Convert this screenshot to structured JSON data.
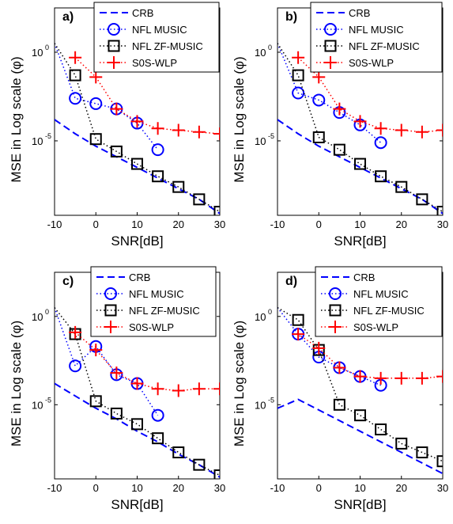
{
  "chart_data": [
    {
      "type": "line",
      "panel_label": "a)",
      "xlabel": "SNR[dB]",
      "ylabel": "MSE in Log scale (φ)",
      "xlim": [
        -10,
        30
      ],
      "ylim_log10": [
        -9.2,
        2.5
      ],
      "y_scale": "log",
      "xticks": [
        "-10",
        "0",
        "10",
        "20",
        "30"
      ],
      "yticks": [
        {
          "base": "10",
          "exp": "0",
          "log": 0
        },
        {
          "base": "10",
          "exp": "-5",
          "log": -5
        }
      ],
      "grid": false,
      "legend_position": "top",
      "series": [
        {
          "name": "CRB",
          "color": "#0000ff",
          "style": "dashed",
          "marker": "none",
          "x": [
            -10,
            -5,
            0,
            5,
            10,
            15,
            20,
            25,
            30
          ],
          "log10_y": [
            -3.8,
            -4.6,
            -5.3,
            -5.9,
            -6.5,
            -7.1,
            -7.7,
            -8.3,
            -9.1
          ]
        },
        {
          "name": "NFL MUSIC",
          "color": "#0000ff",
          "style": "dotted",
          "marker": "circle",
          "x": [
            -10,
            -5,
            0,
            5,
            10,
            15
          ],
          "log10_y": [
            0.5,
            -2.6,
            -2.9,
            -3.2,
            -4.0,
            -5.5
          ]
        },
        {
          "name": "NFL ZF-MUSIC",
          "color": "#000000",
          "style": "dotted",
          "marker": "square",
          "x": [
            -10,
            -5,
            0,
            5,
            10,
            15,
            20,
            25,
            30
          ],
          "log10_y": [
            0.5,
            -1.3,
            -4.9,
            -5.6,
            -6.3,
            -7.0,
            -7.6,
            -8.3,
            -9.0
          ]
        },
        {
          "name": "S0S-WLP",
          "color": "#ff0000",
          "style": "dotted",
          "marker": "plus",
          "x": [
            -5,
            0,
            5,
            10,
            15,
            20,
            25,
            30
          ],
          "log10_y": [
            -0.3,
            -1.4,
            -3.2,
            -3.9,
            -4.3,
            -4.4,
            -4.5,
            -4.6
          ]
        }
      ]
    },
    {
      "type": "line",
      "panel_label": "b)",
      "xlabel": "SNR[dB]",
      "ylabel": "MSE in Log scale (φ)",
      "xlim": [
        -10,
        30
      ],
      "ylim_log10": [
        -9.2,
        2.5
      ],
      "y_scale": "log",
      "xticks": [
        "-10",
        "0",
        "10",
        "20",
        "30"
      ],
      "yticks": [
        {
          "base": "10",
          "exp": "0",
          "log": 0
        },
        {
          "base": "10",
          "exp": "-5",
          "log": -5
        }
      ],
      "grid": false,
      "legend_position": "top",
      "series": [
        {
          "name": "CRB",
          "color": "#0000ff",
          "style": "dashed",
          "marker": "none",
          "x": [
            -10,
            -5,
            0,
            5,
            10,
            15,
            20,
            25,
            30
          ],
          "log10_y": [
            -3.8,
            -4.6,
            -5.3,
            -5.9,
            -6.5,
            -7.1,
            -7.7,
            -8.3,
            -9.1
          ]
        },
        {
          "name": "NFL MUSIC",
          "color": "#0000ff",
          "style": "dotted",
          "marker": "circle",
          "x": [
            -10,
            -5,
            0,
            5,
            10,
            15
          ],
          "log10_y": [
            0.5,
            -2.3,
            -2.7,
            -3.4,
            -4.1,
            -5.1
          ]
        },
        {
          "name": "NFL ZF-MUSIC",
          "color": "#000000",
          "style": "dotted",
          "marker": "square",
          "x": [
            -10,
            -5,
            0,
            5,
            10,
            15,
            20,
            25,
            30
          ],
          "log10_y": [
            0.5,
            -1.3,
            -4.8,
            -5.5,
            -6.3,
            -7.0,
            -7.6,
            -8.3,
            -9.0
          ]
        },
        {
          "name": "S0S-WLP",
          "color": "#ff0000",
          "style": "dotted",
          "marker": "plus",
          "x": [
            -5,
            0,
            5,
            10,
            15,
            20,
            25,
            30
          ],
          "log10_y": [
            -0.3,
            -1.4,
            -3.2,
            -3.9,
            -4.3,
            -4.4,
            -4.5,
            -4.4
          ]
        }
      ]
    },
    {
      "type": "line",
      "panel_label": "c)",
      "xlabel": "SNR[dB]",
      "ylabel": "MSE in Log scale (φ)",
      "xlim": [
        -10,
        30
      ],
      "ylim_log10": [
        -9.2,
        2.5
      ],
      "y_scale": "log",
      "xticks": [
        "-10",
        "0",
        "10",
        "20",
        "30"
      ],
      "yticks": [
        {
          "base": "10",
          "exp": "0",
          "log": 0
        },
        {
          "base": "10",
          "exp": "-5",
          "log": -5
        }
      ],
      "grid": false,
      "legend_position": "top",
      "series": [
        {
          "name": "CRB",
          "color": "#0000ff",
          "style": "dashed",
          "marker": "none",
          "x": [
            -10,
            -5,
            0,
            5,
            10,
            15,
            20,
            25,
            30
          ],
          "log10_y": [
            -3.8,
            -4.5,
            -5.2,
            -5.8,
            -6.5,
            -7.1,
            -7.8,
            -8.4,
            -9.1
          ]
        },
        {
          "name": "NFL MUSIC",
          "color": "#0000ff",
          "style": "dotted",
          "marker": "circle",
          "x": [
            -10,
            -5,
            0,
            5,
            10,
            15
          ],
          "log10_y": [
            0.5,
            -2.8,
            -1.7,
            -3.3,
            -3.8,
            -5.6
          ]
        },
        {
          "name": "NFL ZF-MUSIC",
          "color": "#000000",
          "style": "dotted",
          "marker": "square",
          "x": [
            -10,
            -5,
            0,
            5,
            10,
            15,
            20,
            25,
            30
          ],
          "log10_y": [
            0.5,
            -1.0,
            -4.8,
            -5.5,
            -6.1,
            -6.9,
            -7.7,
            -8.4,
            -9.0
          ]
        },
        {
          "name": "S0S-WLP",
          "color": "#ff0000",
          "style": "dotted",
          "marker": "plus",
          "x": [
            -5,
            0,
            5,
            10,
            15,
            20,
            25,
            30
          ],
          "log10_y": [
            -0.9,
            -1.9,
            -3.2,
            -3.8,
            -4.1,
            -4.2,
            -4.1,
            -4.1
          ]
        }
      ]
    },
    {
      "type": "line",
      "panel_label": "d)",
      "xlabel": "SNR[dB]",
      "ylabel": "MSE in Log scale (φ)",
      "xlim": [
        -10,
        30
      ],
      "ylim_log10": [
        -9.2,
        2.5
      ],
      "y_scale": "log",
      "xticks": [
        "-10",
        "0",
        "10",
        "20",
        "30"
      ],
      "yticks": [
        {
          "base": "10",
          "exp": "0",
          "log": 0
        },
        {
          "base": "10",
          "exp": "-5",
          "log": -5
        }
      ],
      "grid": false,
      "legend_position": "top",
      "series": [
        {
          "name": "CRB",
          "color": "#0000ff",
          "style": "dashed",
          "marker": "none",
          "x": [
            -10,
            -5,
            0,
            5,
            10,
            15,
            20,
            25,
            30
          ],
          "log10_y": [
            -5.2,
            -4.7,
            -5.3,
            -5.9,
            -6.5,
            -7.1,
            -7.7,
            -8.3,
            -8.9
          ]
        },
        {
          "name": "NFL MUSIC",
          "color": "#0000ff",
          "style": "dotted",
          "marker": "circle",
          "x": [
            -10,
            -5,
            0,
            5,
            10,
            15
          ],
          "log10_y": [
            0.5,
            -1.0,
            -2.3,
            -2.9,
            -3.4,
            -3.9
          ]
        },
        {
          "name": "NFL ZF-MUSIC",
          "color": "#000000",
          "style": "dotted",
          "marker": "square",
          "x": [
            -10,
            -5,
            0,
            5,
            10,
            15,
            20,
            25,
            30
          ],
          "log10_y": [
            0.5,
            -0.2,
            -1.9,
            -5.0,
            -5.6,
            -6.4,
            -7.2,
            -7.7,
            -8.2
          ]
        },
        {
          "name": "S0S-WLP",
          "color": "#ff0000",
          "style": "dotted",
          "marker": "plus",
          "x": [
            -5,
            0,
            5,
            10,
            15,
            20,
            25,
            30
          ],
          "log10_y": [
            -1.0,
            -1.8,
            -2.9,
            -3.4,
            -3.5,
            -3.5,
            -3.5,
            -3.4
          ]
        }
      ]
    }
  ]
}
